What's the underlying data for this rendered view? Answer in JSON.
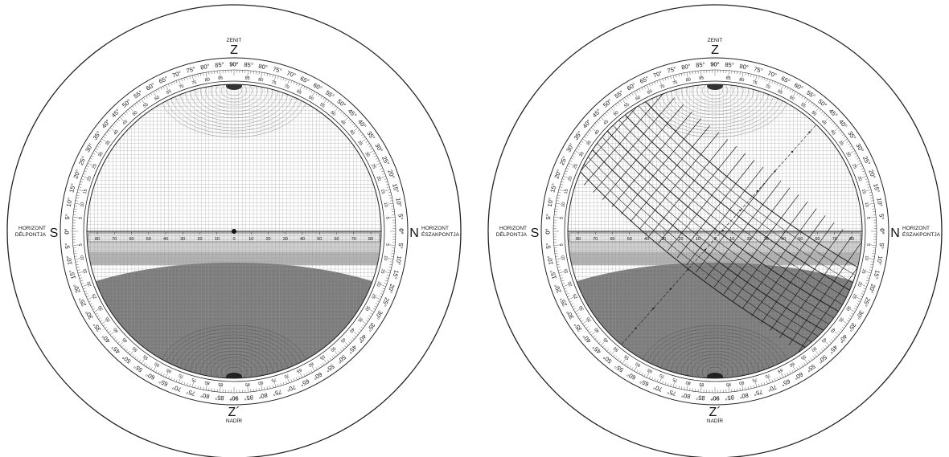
{
  "disc_left": {
    "zenith_caption": "ZENIT",
    "zenith_letter": "Z",
    "nadir_caption": "NADÍR",
    "nadir_letter": "Z´",
    "south_letter": "S",
    "south_caption_1": "HORIZONT",
    "south_caption_2": "DÉLPONTJA",
    "north_letter": "N",
    "north_caption_1": "HORIZONT",
    "north_caption_2": "ÉSZAKPONTJA"
  },
  "disc_right": {
    "zenith_caption": "ZENIT",
    "zenith_letter": "Z",
    "nadir_caption": "NADÍR",
    "nadir_letter": "Z´",
    "south_letter": "S",
    "south_caption_1": "HORIZONT",
    "south_caption_2": "DÉLPONTJA",
    "north_letter": "N",
    "north_caption_1": "HORIZONT",
    "north_caption_2": "ÉSZAKPONTJA"
  },
  "altitude_ring_labels": [
    "0°",
    "5°",
    "10°",
    "15°",
    "20°",
    "25°",
    "30°",
    "35°",
    "40°",
    "45°",
    "50°",
    "55°",
    "60°",
    "65°",
    "70°",
    "75°",
    "80°",
    "85°",
    "90°"
  ],
  "inner_ring_labels": [
    "5",
    "10",
    "15",
    "20",
    "25",
    "30",
    "35",
    "40",
    "45",
    "50",
    "55",
    "60",
    "65",
    "70",
    "75",
    "80",
    "85"
  ],
  "horizon_scale_labels": [
    "80",
    "70",
    "60",
    "50",
    "40",
    "30",
    "20",
    "10",
    "0",
    "10",
    "20",
    "30",
    "40",
    "50",
    "60",
    "70",
    "80"
  ],
  "colors": {
    "background": "#ffffff",
    "outline": "#222222",
    "grid": "#9a9a9a",
    "twilight_1": "#e6e6e6",
    "twilight_2": "#cfcfcf",
    "twilight_3": "#b3b3b3",
    "below_horizon": "#7c7c7c",
    "overlay": "#1a1a1a"
  }
}
